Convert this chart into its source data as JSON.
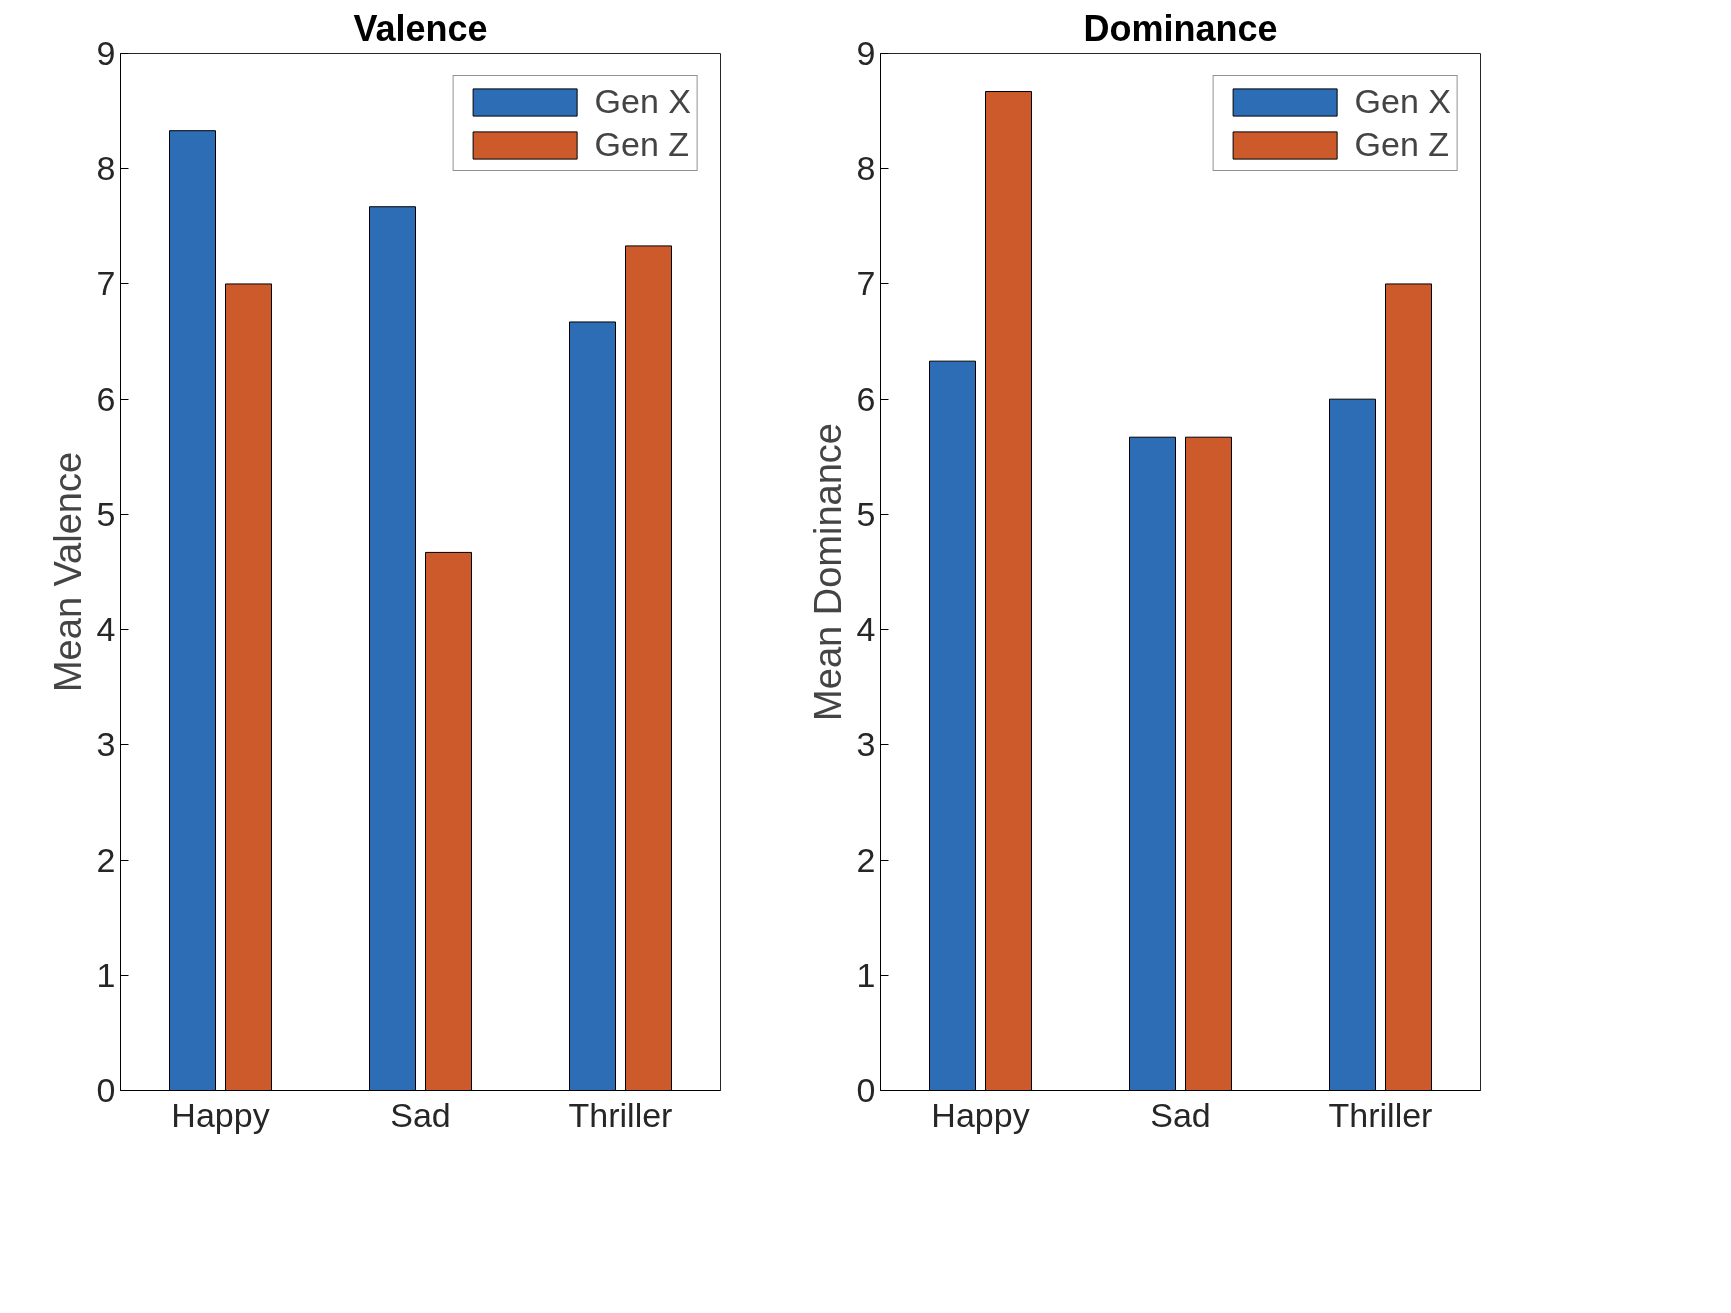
{
  "chart_data": [
    {
      "type": "bar",
      "title": "Valence",
      "ylabel": "Mean Valence",
      "categories": [
        "Happy",
        "Sad",
        "Thriller"
      ],
      "ylim": [
        0,
        9
      ],
      "yticks": [
        0,
        1,
        2,
        3,
        4,
        5,
        6,
        7,
        8,
        9
      ],
      "legend": "top right",
      "series": [
        {
          "name": "Gen X",
          "color": "#2d6db5",
          "values": [
            8.33,
            7.67,
            6.67
          ]
        },
        {
          "name": "Gen Z",
          "color": "#cc5a2a",
          "values": [
            7.0,
            4.67,
            7.33
          ]
        }
      ]
    },
    {
      "type": "bar",
      "title": "Dominance",
      "ylabel": "Mean Dominance",
      "categories": [
        "Happy",
        "Sad",
        "Thriller"
      ],
      "ylim": [
        0,
        9
      ],
      "yticks": [
        0,
        1,
        2,
        3,
        4,
        5,
        6,
        7,
        8,
        9
      ],
      "legend": "top right",
      "series": [
        {
          "name": "Gen X",
          "color": "#2d6db5",
          "values": [
            6.33,
            5.67,
            6.0
          ]
        },
        {
          "name": "Gen Z",
          "color": "#cc5a2a",
          "values": [
            8.67,
            5.67,
            7.0
          ]
        }
      ]
    }
  ]
}
